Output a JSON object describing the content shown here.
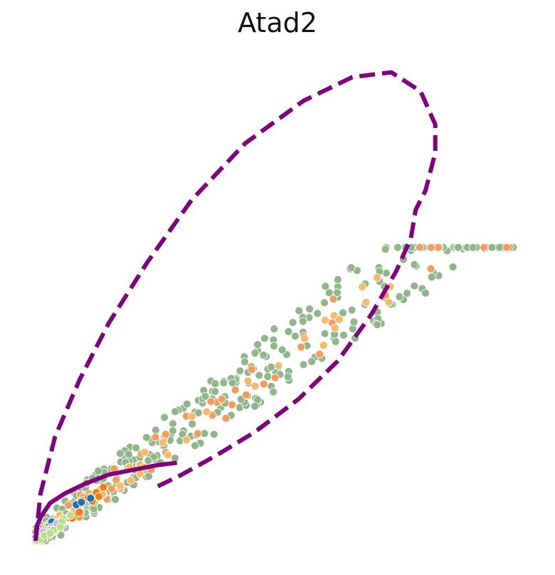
{
  "chart_data": {
    "type": "scatter",
    "title": "Atad2",
    "xlabel": "",
    "ylabel": "",
    "xlim": [
      0,
      1
    ],
    "ylim": [
      0,
      1
    ],
    "axes_visible": false,
    "grid": false,
    "legend": "none",
    "colors": {
      "green": "#8fb68a",
      "orange": "#f29c5c",
      "light_orange": "#fbb769",
      "dark_orange": "#f47d12",
      "blue": "#1f6fb4",
      "lavender": "#c9b8dd",
      "light_green": "#b6e08d",
      "curve": "#800080"
    },
    "clusters": [
      {
        "color": "green",
        "count": 360,
        "u_range": [
          0.0,
          0.98
        ],
        "v_offset": [
          -0.06,
          0.1
        ]
      },
      {
        "color": "orange",
        "count": 60,
        "u_range": [
          0.0,
          1.0
        ],
        "v_offset": [
          -0.04,
          0.06
        ]
      },
      {
        "color": "light_orange",
        "count": 45,
        "u_range": [
          0.0,
          0.75
        ],
        "v_offset": [
          -0.03,
          0.04
        ]
      },
      {
        "color": "dark_orange",
        "count": 30,
        "u_range": [
          0.0,
          0.15
        ],
        "v_offset": [
          -0.02,
          0.03
        ]
      },
      {
        "color": "blue",
        "count": 15,
        "u_range": [
          0.0,
          0.12
        ],
        "v_offset": [
          -0.01,
          0.04
        ]
      },
      {
        "color": "lavender",
        "count": 10,
        "u_range": [
          0.0,
          0.08
        ],
        "v_offset": [
          -0.01,
          0.02
        ]
      },
      {
        "color": "light_green",
        "count": 14,
        "u_range": [
          0.0,
          0.08
        ],
        "v_offset": [
          -0.02,
          0.01
        ]
      }
    ],
    "trend": {
      "slope": 0.74,
      "intercept": 0.0
    },
    "curves": [
      {
        "name": "",
        "style": "dashed",
        "points": [
          [
            0.0,
            0.0
          ],
          [
            0.01,
            0.1
          ],
          [
            0.04,
            0.22
          ],
          [
            0.09,
            0.34
          ],
          [
            0.15,
            0.46
          ],
          [
            0.23,
            0.59
          ],
          [
            0.32,
            0.72
          ],
          [
            0.43,
            0.84
          ],
          [
            0.55,
            0.93
          ],
          [
            0.65,
            0.98
          ],
          [
            0.73,
            0.99
          ],
          [
            0.79,
            0.95
          ],
          [
            0.82,
            0.88
          ],
          [
            0.82,
            0.82
          ],
          [
            0.8,
            0.74
          ],
          [
            0.78,
            0.7
          ],
          [
            0.77,
            0.64
          ],
          [
            0.74,
            0.57
          ],
          [
            0.69,
            0.48
          ],
          [
            0.62,
            0.38
          ],
          [
            0.54,
            0.3
          ],
          [
            0.45,
            0.23
          ],
          [
            0.37,
            0.18
          ],
          [
            0.3,
            0.14
          ],
          [
            0.24,
            0.11
          ]
        ]
      },
      {
        "name": "",
        "style": "solid",
        "points": [
          [
            0.0,
            0.0
          ],
          [
            0.002,
            0.03
          ],
          [
            0.01,
            0.05
          ],
          [
            0.03,
            0.08
          ],
          [
            0.06,
            0.1
          ],
          [
            0.1,
            0.12
          ],
          [
            0.15,
            0.14
          ],
          [
            0.2,
            0.15
          ],
          [
            0.25,
            0.16
          ],
          [
            0.29,
            0.165
          ]
        ]
      }
    ]
  }
}
